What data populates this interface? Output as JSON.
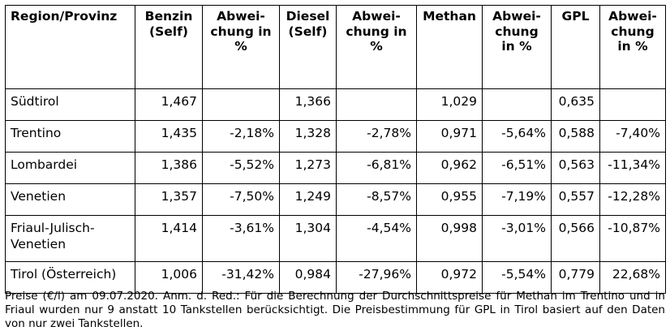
{
  "table": {
    "headers": [
      "Region/Provinz",
      "Benzin (Self)",
      "Abwei- chung in %",
      "Diesel (Self)",
      "Abwei- chung in %",
      "Methan",
      "Abwei- chung in %",
      "GPL",
      "Abwei- chung in %"
    ],
    "rows": [
      [
        "Südtirol",
        "1,467",
        "",
        "1,366",
        "",
        "1,029",
        "",
        "0,635",
        ""
      ],
      [
        "Trentino",
        "1,435",
        "-2,18%",
        "1,328",
        "-2,78%",
        "0,971",
        "-5,64%",
        "0,588",
        "-7,40%"
      ],
      [
        "Lombardei",
        "1,386",
        "-5,52%",
        "1,273",
        "-6,81%",
        "0,962",
        "-6,51%",
        "0,563",
        "-11,34%"
      ],
      [
        "Venetien",
        "1,357",
        "-7,50%",
        "1,249",
        "-8,57%",
        "0,955",
        "-7,19%",
        "0,557",
        "-12,28%"
      ],
      [
        "Friaul-Julisch-Venetien",
        "1,414",
        "-3,61%",
        "1,304",
        "-4,54%",
        "0,998",
        "-3,01%",
        "0,566",
        "-10,87%"
      ],
      [
        "Tirol (Österreich)",
        "1,006",
        "-31,42%",
        "0,984",
        "-27,96%",
        "0,972",
        "-5,54%",
        "0,779",
        "22,68%"
      ]
    ]
  },
  "footnote": "Preise (€/l) am 09.07.2020. Anm. d. Red.: Für die Berechnung der Durchschnittspreise für Methan im Trentino und in Friaul wurden nur 9 anstatt 10 Tankstellen berücksichtigt. Die Preisbestimmung für GPL in Tirol basiert auf den Daten von nur zwei Tankstellen."
}
